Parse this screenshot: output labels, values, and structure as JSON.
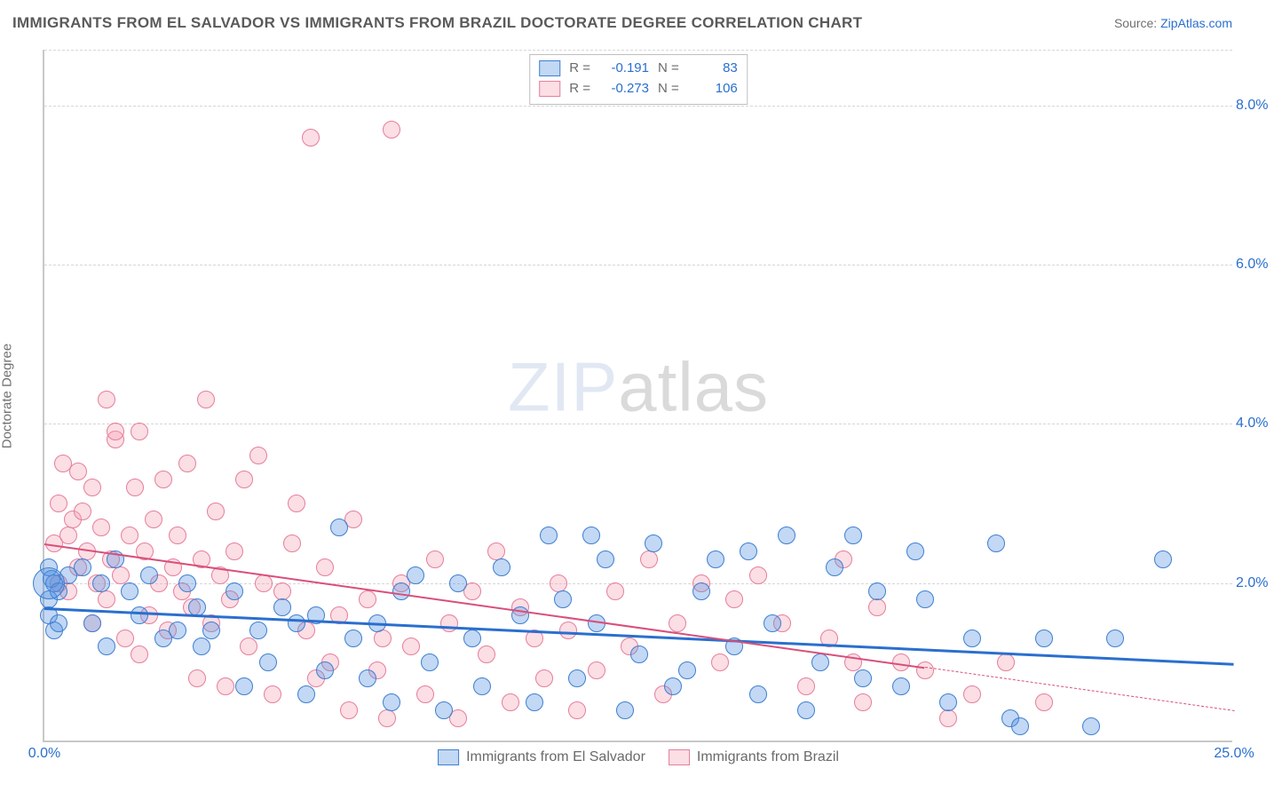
{
  "title": "IMMIGRANTS FROM EL SALVADOR VS IMMIGRANTS FROM BRAZIL DOCTORATE DEGREE CORRELATION CHART",
  "source_label": "Source:",
  "source_name": "ZipAtlas.com",
  "ylabel": "Doctorate Degree",
  "watermark_a": "ZIP",
  "watermark_b": "atlas",
  "chart": {
    "type": "scatter",
    "background_color": "#ffffff",
    "grid_color": "#d6d6d6",
    "axis_color": "#c8c8c8",
    "tick_color": "#2a6fce",
    "tick_fontsize": 16,
    "label_fontsize": 15,
    "label_color": "#707070",
    "xlim": [
      0,
      25
    ],
    "ylim": [
      0,
      8.7
    ],
    "xticks": [
      {
        "v": 0,
        "label": "0.0%"
      },
      {
        "v": 25,
        "label": "25.0%"
      }
    ],
    "yticks": [
      {
        "v": 2,
        "label": "2.0%"
      },
      {
        "v": 4,
        "label": "4.0%"
      },
      {
        "v": 6,
        "label": "6.0%"
      },
      {
        "v": 8,
        "label": "8.0%"
      }
    ],
    "grid_y": [
      2,
      4,
      6,
      8,
      8.7
    ],
    "marker_radius": 10,
    "marker_border_width": 1.5,
    "marker_fill_opacity": 0.35,
    "series": [
      {
        "id": "el_salvador",
        "name": "Immigrants from El Salvador",
        "color": "#4f8fe0",
        "border_color": "#3f7fd0",
        "stats": {
          "R": "-0.191",
          "N": "83"
        },
        "trend": {
          "x1": 0,
          "y1": 1.7,
          "x2": 25,
          "y2": 1.0,
          "color": "#2a6fce",
          "width": 2.5,
          "dashed_after_x": null
        },
        "points": [
          [
            0.1,
            1.6
          ],
          [
            0.1,
            1.8
          ],
          [
            0.1,
            2.2
          ],
          [
            0.15,
            2.05
          ],
          [
            0.2,
            1.4
          ],
          [
            0.2,
            2.0
          ],
          [
            0.3,
            1.9
          ],
          [
            0.3,
            1.5
          ],
          [
            0.5,
            2.1
          ],
          [
            0.8,
            2.2
          ],
          [
            1.0,
            1.5
          ],
          [
            1.2,
            2.0
          ],
          [
            1.3,
            1.2
          ],
          [
            1.5,
            2.3
          ],
          [
            1.8,
            1.9
          ],
          [
            2.0,
            1.6
          ],
          [
            2.2,
            2.1
          ],
          [
            2.5,
            1.3
          ],
          [
            2.8,
            1.4
          ],
          [
            3.0,
            2.0
          ],
          [
            3.2,
            1.7
          ],
          [
            3.3,
            1.2
          ],
          [
            3.5,
            1.4
          ],
          [
            4.0,
            1.9
          ],
          [
            4.2,
            0.7
          ],
          [
            4.5,
            1.4
          ],
          [
            4.7,
            1.0
          ],
          [
            5.0,
            1.7
          ],
          [
            5.3,
            1.5
          ],
          [
            5.5,
            0.6
          ],
          [
            5.7,
            1.6
          ],
          [
            5.9,
            0.9
          ],
          [
            6.2,
            2.7
          ],
          [
            6.5,
            1.3
          ],
          [
            6.8,
            0.8
          ],
          [
            7.0,
            1.5
          ],
          [
            7.3,
            0.5
          ],
          [
            7.5,
            1.9
          ],
          [
            7.8,
            2.1
          ],
          [
            8.1,
            1.0
          ],
          [
            8.4,
            0.4
          ],
          [
            8.7,
            2.0
          ],
          [
            9.0,
            1.3
          ],
          [
            9.2,
            0.7
          ],
          [
            9.6,
            2.2
          ],
          [
            10.0,
            1.6
          ],
          [
            10.3,
            0.5
          ],
          [
            10.6,
            2.6
          ],
          [
            10.9,
            1.8
          ],
          [
            11.2,
            0.8
          ],
          [
            11.5,
            2.6
          ],
          [
            11.6,
            1.5
          ],
          [
            11.8,
            2.3
          ],
          [
            12.2,
            0.4
          ],
          [
            12.5,
            1.1
          ],
          [
            12.8,
            2.5
          ],
          [
            13.2,
            0.7
          ],
          [
            13.5,
            0.9
          ],
          [
            13.8,
            1.9
          ],
          [
            14.1,
            2.3
          ],
          [
            14.5,
            1.2
          ],
          [
            14.8,
            2.4
          ],
          [
            15.0,
            0.6
          ],
          [
            15.3,
            1.5
          ],
          [
            15.6,
            2.6
          ],
          [
            16.0,
            0.4
          ],
          [
            16.3,
            1.0
          ],
          [
            16.6,
            2.2
          ],
          [
            17.0,
            2.6
          ],
          [
            17.2,
            0.8
          ],
          [
            17.5,
            1.9
          ],
          [
            18.0,
            0.7
          ],
          [
            18.3,
            2.4
          ],
          [
            18.5,
            1.8
          ],
          [
            19.0,
            0.5
          ],
          [
            19.5,
            1.3
          ],
          [
            20.0,
            2.5
          ],
          [
            20.3,
            0.3
          ],
          [
            20.5,
            0.2
          ],
          [
            21.0,
            1.3
          ],
          [
            22.0,
            0.2
          ],
          [
            22.5,
            1.3
          ],
          [
            23.5,
            2.3
          ]
        ]
      },
      {
        "id": "brazil",
        "name": "Immigrants from Brazil",
        "color": "#f5a0b5",
        "border_color": "#e57f9a",
        "stats": {
          "R": "-0.273",
          "N": "106"
        },
        "trend": {
          "x1": 0,
          "y1": 2.5,
          "x2": 25,
          "y2": 0.4,
          "color": "#d94f7a",
          "width": 2,
          "dashed_after_x": 18.5
        },
        "points": [
          [
            0.2,
            2.5
          ],
          [
            0.3,
            3.0
          ],
          [
            0.3,
            2.0
          ],
          [
            0.4,
            3.5
          ],
          [
            0.5,
            2.6
          ],
          [
            0.5,
            1.9
          ],
          [
            0.6,
            2.8
          ],
          [
            0.7,
            3.4
          ],
          [
            0.7,
            2.2
          ],
          [
            0.8,
            2.9
          ],
          [
            0.9,
            2.4
          ],
          [
            1.0,
            3.2
          ],
          [
            1.0,
            1.5
          ],
          [
            1.1,
            2.0
          ],
          [
            1.2,
            2.7
          ],
          [
            1.3,
            4.3
          ],
          [
            1.3,
            1.8
          ],
          [
            1.4,
            2.3
          ],
          [
            1.5,
            3.8
          ],
          [
            1.5,
            3.9
          ],
          [
            1.6,
            2.1
          ],
          [
            1.7,
            1.3
          ],
          [
            1.8,
            2.6
          ],
          [
            1.9,
            3.2
          ],
          [
            2.0,
            3.9
          ],
          [
            2.0,
            1.1
          ],
          [
            2.1,
            2.4
          ],
          [
            2.2,
            1.6
          ],
          [
            2.3,
            2.8
          ],
          [
            2.4,
            2.0
          ],
          [
            2.5,
            3.3
          ],
          [
            2.6,
            1.4
          ],
          [
            2.7,
            2.2
          ],
          [
            2.8,
            2.6
          ],
          [
            2.9,
            1.9
          ],
          [
            3.0,
            3.5
          ],
          [
            3.1,
            1.7
          ],
          [
            3.2,
            0.8
          ],
          [
            3.3,
            2.3
          ],
          [
            3.4,
            4.3
          ],
          [
            3.5,
            1.5
          ],
          [
            3.6,
            2.9
          ],
          [
            3.7,
            2.1
          ],
          [
            3.8,
            0.7
          ],
          [
            3.9,
            1.8
          ],
          [
            4.0,
            2.4
          ],
          [
            4.2,
            3.3
          ],
          [
            4.3,
            1.2
          ],
          [
            4.5,
            3.6
          ],
          [
            4.6,
            2.0
          ],
          [
            4.8,
            0.6
          ],
          [
            5.0,
            1.9
          ],
          [
            5.2,
            2.5
          ],
          [
            5.3,
            3.0
          ],
          [
            5.5,
            1.4
          ],
          [
            5.6,
            7.6
          ],
          [
            5.7,
            0.8
          ],
          [
            5.9,
            2.2
          ],
          [
            6.0,
            1.0
          ],
          [
            6.2,
            1.6
          ],
          [
            6.4,
            0.4
          ],
          [
            6.5,
            2.8
          ],
          [
            6.8,
            1.8
          ],
          [
            7.0,
            0.9
          ],
          [
            7.1,
            1.3
          ],
          [
            7.2,
            0.3
          ],
          [
            7.3,
            7.7
          ],
          [
            7.5,
            2.0
          ],
          [
            7.7,
            1.2
          ],
          [
            8.0,
            0.6
          ],
          [
            8.2,
            2.3
          ],
          [
            8.5,
            1.5
          ],
          [
            8.7,
            0.3
          ],
          [
            9.0,
            1.9
          ],
          [
            9.3,
            1.1
          ],
          [
            9.5,
            2.4
          ],
          [
            9.8,
            0.5
          ],
          [
            10.0,
            1.7
          ],
          [
            10.3,
            1.3
          ],
          [
            10.5,
            0.8
          ],
          [
            10.8,
            2.0
          ],
          [
            11.0,
            1.4
          ],
          [
            11.2,
            0.4
          ],
          [
            11.6,
            0.9
          ],
          [
            12.0,
            1.9
          ],
          [
            12.3,
            1.2
          ],
          [
            12.7,
            2.3
          ],
          [
            13.0,
            0.6
          ],
          [
            13.3,
            1.5
          ],
          [
            13.8,
            2.0
          ],
          [
            14.2,
            1.0
          ],
          [
            14.5,
            1.8
          ],
          [
            15.0,
            2.1
          ],
          [
            15.5,
            1.5
          ],
          [
            16.0,
            0.7
          ],
          [
            16.5,
            1.3
          ],
          [
            16.8,
            2.3
          ],
          [
            17.0,
            1.0
          ],
          [
            17.2,
            0.5
          ],
          [
            17.5,
            1.7
          ],
          [
            18.0,
            1.0
          ],
          [
            18.5,
            0.9
          ],
          [
            19.0,
            0.3
          ],
          [
            19.5,
            0.6
          ],
          [
            20.2,
            1.0
          ],
          [
            21.0,
            0.5
          ]
        ]
      }
    ]
  },
  "legend": {
    "r_label": "R =",
    "n_label": "N ="
  },
  "large_markers": [
    {
      "series": "el_salvador",
      "x": 0.1,
      "y": 2.0,
      "r": 18
    }
  ]
}
